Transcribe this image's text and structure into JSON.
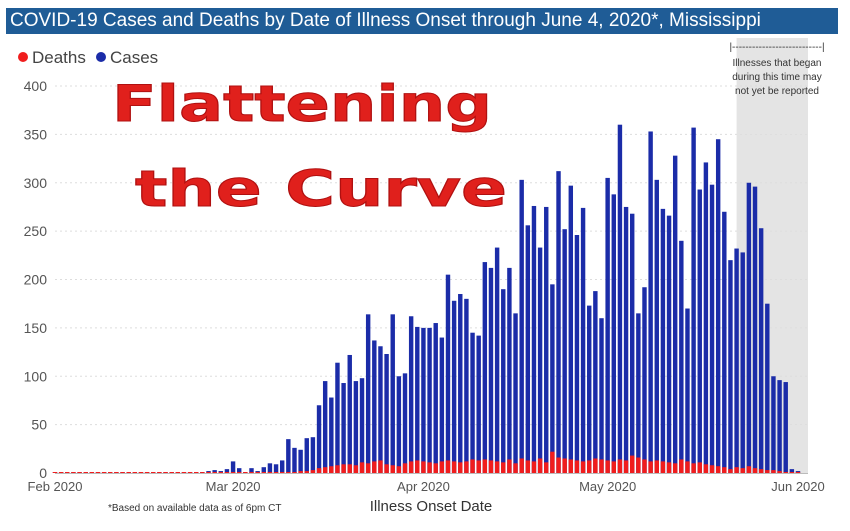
{
  "title": "COVID-19 Cases and Deaths by Date of Illness Onset through June 4, 2020*, Mississippi",
  "legend": {
    "deaths_label": "Deaths",
    "cases_label": "Cases"
  },
  "colors": {
    "cases": "#1b2ca8",
    "deaths": "#f01d1d",
    "title_bg": "#1f5c96",
    "shade": "#e4e4e4"
  },
  "overlay": {
    "line1": "Flattening",
    "line2": "the Curve"
  },
  "note": {
    "bracket": "|---------------------------|",
    "lines": [
      "Illnesses that began",
      "during this time may",
      "not yet be reported"
    ]
  },
  "footnote": "*Based on available data as of 6pm CT",
  "chart_data": {
    "type": "bar",
    "title": "COVID-19 Cases and Deaths by Date of Illness Onset through June 4, 2020*, Mississippi",
    "xlabel": "Illness Onset Date",
    "ylabel": "",
    "ylim": [
      0,
      400
    ],
    "yticks": [
      "0",
      "50",
      "100",
      "150",
      "200",
      "250",
      "300",
      "350",
      "400"
    ],
    "xticks": [
      {
        "label": "Feb 2020",
        "day": 0
      },
      {
        "label": "Mar 2020",
        "day": 29
      },
      {
        "label": "Apr 2020",
        "day": 60
      },
      {
        "label": "May 2020",
        "day": 90
      },
      {
        "label": "Jun 2020",
        "day": 121
      }
    ],
    "start_day": 0,
    "x_max_day": 125,
    "shaded_from_day": 111,
    "series": [
      {
        "name": "Cases",
        "values": [
          1,
          1,
          0,
          0,
          0,
          0,
          1,
          0,
          1,
          1,
          0,
          1,
          1,
          0,
          1,
          0,
          0,
          0,
          1,
          1,
          0,
          1,
          0,
          1,
          1,
          2,
          3,
          2,
          4,
          12,
          5,
          1,
          5,
          2,
          6,
          10,
          9,
          13,
          35,
          26,
          24,
          36,
          37,
          70,
          95,
          78,
          114,
          93,
          122,
          95,
          98,
          164,
          137,
          131,
          123,
          164,
          100,
          103,
          162,
          151,
          150,
          150,
          155,
          140,
          205,
          178,
          185,
          180,
          145,
          142,
          218,
          212,
          233,
          190,
          212,
          165,
          303,
          256,
          276,
          233,
          275,
          195,
          312,
          252,
          297,
          246,
          274,
          173,
          188,
          160,
          305,
          288,
          360,
          275,
          268,
          165,
          192,
          353,
          303,
          273,
          266,
          328,
          240,
          170,
          357,
          293,
          321,
          298,
          345,
          270,
          220,
          232,
          228,
          300,
          296,
          253,
          175,
          100,
          96,
          94,
          4,
          2
        ]
      },
      {
        "name": "Deaths",
        "values": [
          0,
          0,
          0,
          0,
          0,
          0,
          0,
          0,
          0,
          0,
          0,
          0,
          0,
          0,
          0,
          0,
          0,
          0,
          0,
          0,
          0,
          0,
          0,
          0,
          0,
          0,
          0,
          0,
          0,
          0,
          0,
          0,
          0,
          0,
          0,
          0,
          0,
          0,
          1,
          1,
          2,
          2,
          3,
          5,
          6,
          7,
          8,
          9,
          9,
          8,
          11,
          10,
          12,
          13,
          9,
          8,
          7,
          10,
          12,
          13,
          12,
          11,
          10,
          12,
          13,
          12,
          11,
          12,
          14,
          13,
          14,
          13,
          12,
          11,
          14,
          10,
          15,
          13,
          12,
          15,
          11,
          22,
          16,
          15,
          14,
          13,
          12,
          13,
          15,
          14,
          13,
          12,
          14,
          13,
          18,
          16,
          14,
          12,
          13,
          12,
          11,
          10,
          14,
          12,
          10,
          11,
          9,
          8,
          7,
          6,
          4,
          6,
          5,
          7,
          5,
          4,
          3,
          3,
          2,
          1,
          0,
          0
        ]
      }
    ]
  }
}
